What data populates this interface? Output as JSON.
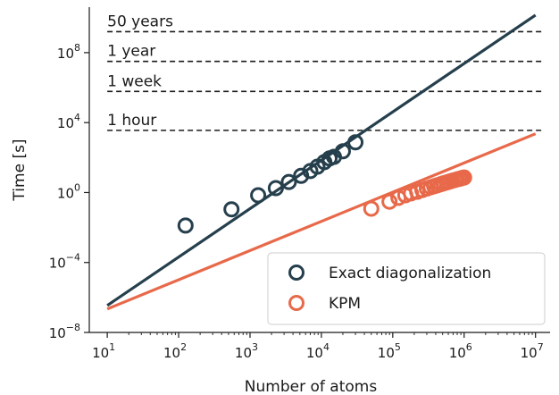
{
  "chart_data": {
    "type": "scatter",
    "xlabel": "Number of atoms",
    "ylabel": "Time [s]",
    "xscale": "log",
    "yscale": "log",
    "xlim": [
      5.6,
      16000000.0
    ],
    "ylim": [
      1e-08,
      40000000000.0
    ],
    "x_ticks": [
      {
        "value": 10,
        "base": "10",
        "exp": "1"
      },
      {
        "value": 100,
        "base": "10",
        "exp": "2"
      },
      {
        "value": 1000,
        "base": "10",
        "exp": "3"
      },
      {
        "value": 10000,
        "base": "10",
        "exp": "4"
      },
      {
        "value": 100000,
        "base": "10",
        "exp": "5"
      },
      {
        "value": 1000000,
        "base": "10",
        "exp": "6"
      },
      {
        "value": 10000000,
        "base": "10",
        "exp": "7"
      }
    ],
    "y_ticks": [
      {
        "value": 1e-08,
        "base": "10",
        "exp": "−8"
      },
      {
        "value": 0.0001,
        "base": "10",
        "exp": "−4"
      },
      {
        "value": 1,
        "base": "10",
        "exp": "0"
      },
      {
        "value": 10000,
        "base": "10",
        "exp": "4"
      },
      {
        "value": 100000000,
        "base": "10",
        "exp": "8"
      }
    ],
    "reference_lines": [
      {
        "label": "50 years",
        "value": 1580000000.0
      },
      {
        "label": "1 year",
        "value": 31500000.0
      },
      {
        "label": "1 week",
        "value": 605000.0
      },
      {
        "label": "1 hour",
        "value": 3600
      }
    ],
    "series": [
      {
        "name": "Exact diagonalization",
        "color": "#253f4c",
        "points": [
          [
            125,
            0.013
          ],
          [
            550,
            0.11
          ],
          [
            1300,
            0.7
          ],
          [
            2300,
            1.8
          ],
          [
            3500,
            4.0
          ],
          [
            5200,
            9.0
          ],
          [
            7000,
            17
          ],
          [
            8800,
            30
          ],
          [
            11000,
            55
          ],
          [
            13000,
            90
          ],
          [
            15000,
            110
          ],
          [
            20000,
            230
          ],
          [
            30000,
            750
          ]
        ],
        "fit": [
          [
            10,
            3.5e-07
          ],
          [
            10000000,
            14000000000.0
          ]
        ]
      },
      {
        "name": "KPM",
        "color": "#e8694a",
        "points": [
          [
            50000,
            0.12
          ],
          [
            90000,
            0.3
          ],
          [
            120000,
            0.5
          ],
          [
            150000,
            0.7
          ],
          [
            180000,
            0.9
          ],
          [
            220000,
            1.1
          ],
          [
            260000,
            1.4
          ],
          [
            300000,
            1.7
          ],
          [
            340000,
            2.0
          ],
          [
            380000,
            2.3
          ],
          [
            420000,
            2.6
          ],
          [
            470000,
            3.0
          ],
          [
            520000,
            3.4
          ],
          [
            570000,
            3.8
          ],
          [
            620000,
            4.2
          ],
          [
            680000,
            4.7
          ],
          [
            740000,
            5.2
          ],
          [
            800000,
            5.7
          ],
          [
            870000,
            6.2
          ],
          [
            930000,
            6.7
          ],
          [
            1000000,
            7.2
          ]
        ],
        "fit": [
          [
            10,
            2.2e-07
          ],
          [
            10000000,
            2300.0
          ]
        ]
      }
    ],
    "legend": {
      "position": "bottom-right"
    },
    "grid": false
  }
}
